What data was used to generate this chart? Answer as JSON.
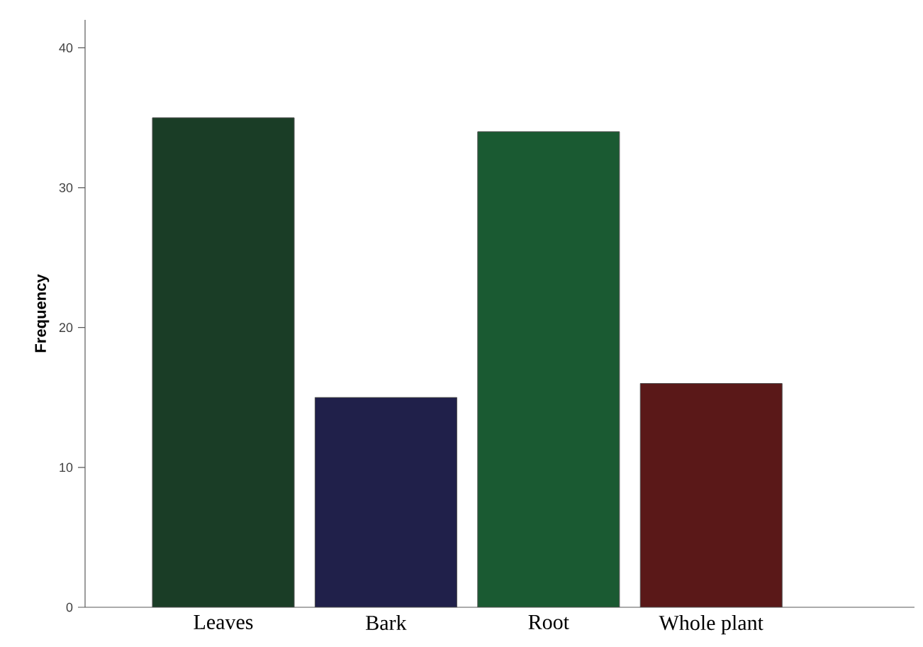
{
  "chart_data": {
    "type": "bar",
    "ylabel": "Frequency",
    "categories": [
      "Leaves",
      "Bark",
      "Root",
      "Whole plant"
    ],
    "values": [
      35,
      15,
      34,
      16
    ],
    "colors": [
      "#1a3d26",
      "#20204a",
      "#1a5a32",
      "#5a1818"
    ],
    "ylim": [
      0,
      42
    ],
    "yticks": [
      0,
      10,
      20,
      30,
      40
    ]
  }
}
